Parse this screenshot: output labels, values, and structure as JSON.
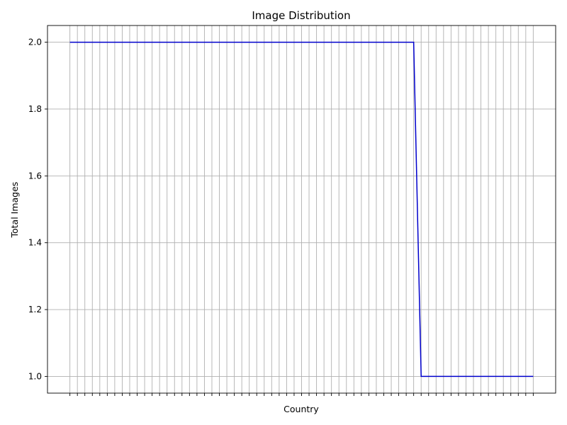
{
  "chart_data": {
    "type": "line",
    "title": "Image Distribution",
    "xlabel": "Country",
    "ylabel": "Total Images",
    "x_count": 63,
    "values": [
      2,
      2,
      2,
      2,
      2,
      2,
      2,
      2,
      2,
      2,
      2,
      2,
      2,
      2,
      2,
      2,
      2,
      2,
      2,
      2,
      2,
      2,
      2,
      2,
      2,
      2,
      2,
      2,
      2,
      2,
      2,
      2,
      2,
      2,
      2,
      2,
      2,
      2,
      2,
      2,
      2,
      2,
      2,
      2,
      2,
      2,
      2,
      1,
      1,
      1,
      1,
      1,
      1,
      1,
      1,
      1,
      1,
      1,
      1,
      1,
      1,
      1,
      1
    ],
    "xlim": [
      -3,
      65
    ],
    "ylim": [
      0.95,
      2.05
    ],
    "yticks": [
      "1.0",
      "1.2",
      "1.4",
      "1.6",
      "1.8",
      "2.0"
    ],
    "grid": true,
    "line_color": "#0000cc"
  }
}
